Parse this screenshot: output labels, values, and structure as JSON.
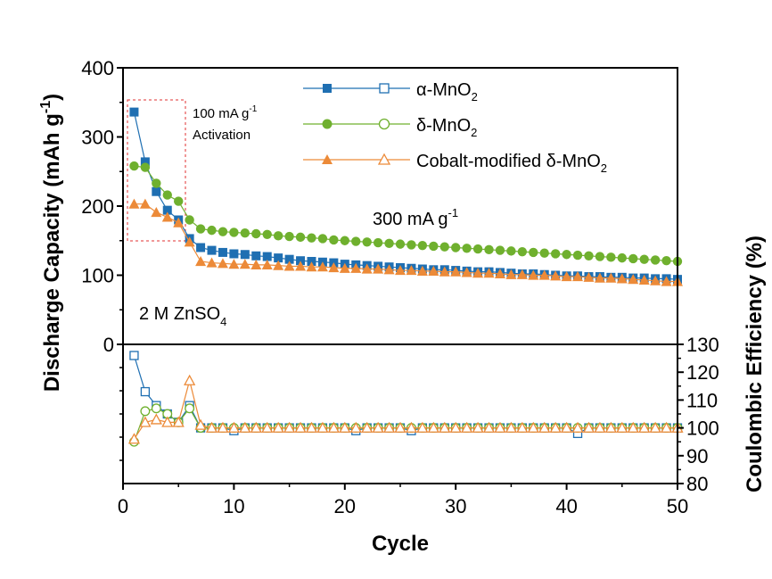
{
  "chart_data": {
    "type": "scatter",
    "xlabel": "Cycle",
    "ylabel_top": "Discharge Capacity (mAh g",
    "ylabel_top_sup": "-1",
    "ylabel_top_end": ")",
    "ylabel_bottom": "Coulombic Efficiency (%)",
    "xlim": [
      0,
      50
    ],
    "ylim_top": [
      0,
      400
    ],
    "ylim_bottom": [
      80,
      130
    ],
    "x_ticks": [
      0,
      10,
      20,
      30,
      40,
      50
    ],
    "y_ticks_top": [
      0,
      100,
      200,
      300,
      400
    ],
    "y_ticks_bottom": [
      80,
      90,
      100,
      110,
      120,
      130
    ],
    "legend_position": "top-right",
    "annotations": {
      "activation_rate": "100 mA g",
      "activation_rate_sup": "-1",
      "activation_label": "Activation",
      "main_rate": "300 mA g",
      "main_rate_sup": "-1",
      "electrolyte": "2 M ZnSO",
      "electrolyte_sub": "4"
    },
    "series": [
      {
        "name": "α-MnO",
        "name_sub": "2",
        "color": "#1f6fb2",
        "marker": "square",
        "capacity": [
          336,
          264,
          221,
          194,
          180,
          153,
          140,
          136,
          133,
          131,
          130,
          128,
          127,
          125,
          123,
          121,
          120,
          119,
          118,
          116,
          115,
          114,
          113,
          112,
          111,
          110,
          109,
          108,
          108,
          107,
          106,
          105,
          105,
          104,
          103,
          102,
          102,
          101,
          100,
          99,
          99,
          98,
          98,
          97,
          97,
          96,
          96,
          95,
          95,
          94
        ],
        "efficiency": [
          126,
          113,
          108,
          105,
          102,
          108,
          100,
          100,
          100,
          99,
          100,
          100,
          100,
          100,
          100,
          100,
          100,
          100,
          100,
          100,
          99,
          100,
          100,
          100,
          100,
          99,
          100,
          100,
          100,
          100,
          100,
          100,
          100,
          100,
          100,
          100,
          100,
          100,
          100,
          100,
          98,
          100,
          100,
          100,
          100,
          100,
          100,
          100,
          100,
          100
        ]
      },
      {
        "name": "δ-MnO",
        "name_sub": "2",
        "color": "#6fb02e",
        "marker": "circle",
        "capacity": [
          258,
          256,
          233,
          216,
          207,
          180,
          167,
          165,
          163,
          162,
          161,
          160,
          159,
          157,
          156,
          155,
          154,
          153,
          151,
          150,
          149,
          148,
          147,
          146,
          145,
          144,
          143,
          142,
          141,
          140,
          139,
          138,
          137,
          136,
          135,
          134,
          133,
          132,
          131,
          130,
          129,
          128,
          127,
          126,
          125,
          124,
          123,
          122,
          121,
          120
        ],
        "efficiency": [
          95,
          106,
          107,
          105,
          102,
          107,
          100,
          100,
          100,
          100,
          100,
          100,
          100,
          100,
          100,
          100,
          100,
          100,
          100,
          100,
          100,
          100,
          100,
          100,
          100,
          100,
          100,
          100,
          100,
          100,
          100,
          100,
          100,
          100,
          100,
          100,
          100,
          100,
          100,
          100,
          100,
          100,
          100,
          100,
          100,
          100,
          100,
          100,
          100,
          100
        ]
      },
      {
        "name": "Cobalt-modified δ-MnO",
        "name_sub": "2",
        "color": "#ec8a38",
        "marker": "triangle",
        "capacity": [
          203,
          203,
          191,
          184,
          176,
          148,
          120,
          118,
          117,
          116,
          116,
          115,
          115,
          114,
          113,
          113,
          112,
          112,
          111,
          110,
          110,
          109,
          109,
          108,
          107,
          107,
          106,
          106,
          105,
          105,
          104,
          103,
          103,
          102,
          101,
          101,
          100,
          100,
          99,
          98,
          98,
          97,
          96,
          96,
          95,
          94,
          93,
          92,
          91,
          91
        ],
        "efficiency": [
          96,
          102,
          103,
          102,
          102,
          117,
          101,
          100,
          100,
          100,
          100,
          100,
          100,
          100,
          100,
          100,
          100,
          100,
          100,
          100,
          100,
          100,
          100,
          100,
          100,
          100,
          100,
          100,
          100,
          100,
          100,
          100,
          100,
          100,
          100,
          100,
          100,
          100,
          100,
          100,
          100,
          100,
          100,
          100,
          100,
          100,
          100,
          100,
          100,
          100
        ]
      }
    ]
  }
}
